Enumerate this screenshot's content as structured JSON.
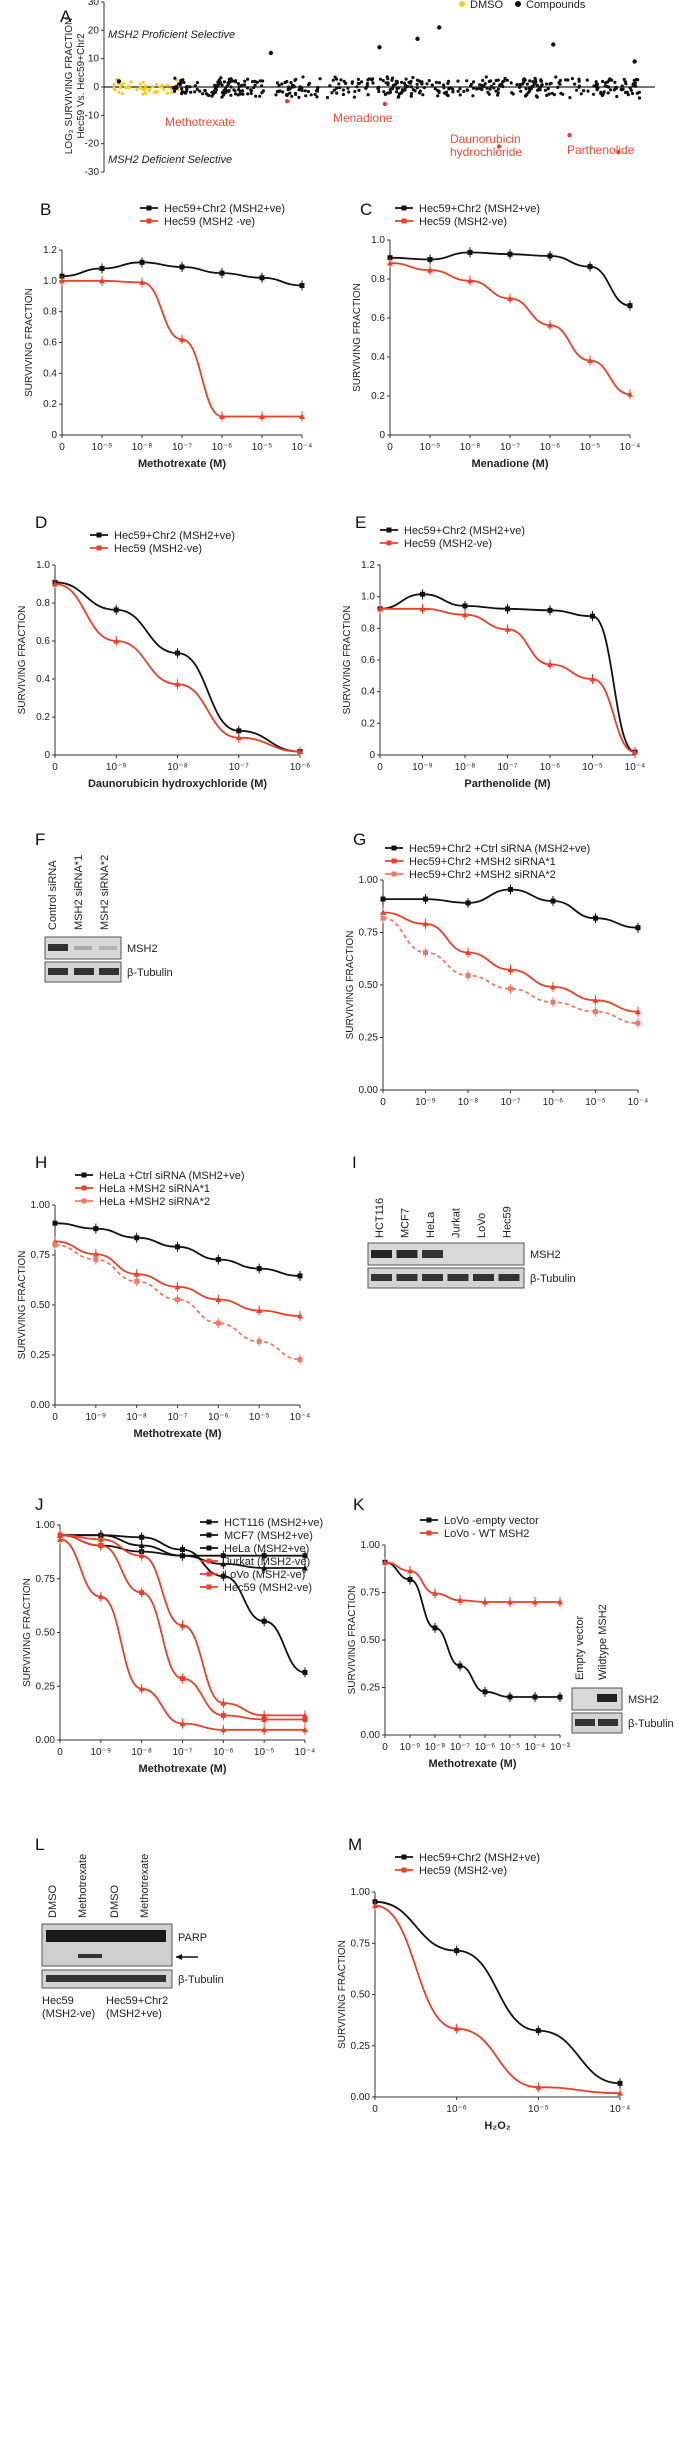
{
  "figure": {
    "panels": {
      "A": {
        "label": "A",
        "legend": [
          {
            "name": "DMSO",
            "color": "#f2d01f"
          },
          {
            "name": "Compounds",
            "color": "#111111"
          }
        ],
        "ylabel_line1": "LOG₂ SURVIVING FRACTION",
        "ylabel_line2": "Hec59 Vs. Hec59+Chr2",
        "yticks": [
          "30",
          "20",
          "10",
          "0",
          "-10",
          "-20",
          "-30"
        ],
        "top_note": "MSH2 Proficient Selective",
        "bottom_note": "MSH2 Deficient Selective",
        "hits": [
          "Methotrexate",
          "Menadione",
          "Daunorubicin",
          "hydrochloride",
          "Parthenolide"
        ]
      },
      "B": {
        "label": "B",
        "xlabel": "Methotrexate (M)",
        "ylabel": "SURVIVING FRACTION",
        "series": [
          "Hec59+Chr2 (MSH2+ve)",
          "Hec59 (MSH2 -ve)"
        ],
        "yticks": [
          "1.2",
          "1.0",
          "0.8",
          "0.6",
          "0.4",
          "0.2",
          "0"
        ],
        "xticks": [
          "0",
          "10⁻⁹",
          "10⁻⁸",
          "10⁻⁷",
          "10⁻⁶",
          "10⁻⁵",
          "10⁻⁴"
        ]
      },
      "C": {
        "label": "C",
        "xlabel": "Menadione (M)",
        "ylabel": "SURVIVING FRACTION",
        "series": [
          "Hec59+Chr2 (MSH2+ve)",
          "Hec59 (MSH2-ve)"
        ],
        "yticks": [
          "1.0",
          "0.8",
          "0.6",
          "0.4",
          "0.2",
          "0"
        ],
        "xticks": [
          "0",
          "10⁻⁹",
          "10⁻⁸",
          "10⁻⁷",
          "10⁻⁶",
          "10⁻⁵",
          "10⁻⁴"
        ]
      },
      "D": {
        "label": "D",
        "xlabel": "Daunorubicin hydroxychloride (M)",
        "ylabel": "SURVIVING FRACTION",
        "series": [
          "Hec59+Chr2 (MSH2+ve)",
          "Hec59 (MSH2-ve)"
        ],
        "yticks": [
          "1.0",
          "0.8",
          "0.6",
          "0.4",
          "0.2",
          "0"
        ],
        "xticks": [
          "0",
          "10⁻⁹",
          "10⁻⁸",
          "10⁻⁷",
          "10⁻⁶"
        ]
      },
      "E": {
        "label": "E",
        "xlabel": "Parthenolide (M)",
        "ylabel": "SURVIVING FRACTION",
        "series": [
          "Hec59+Chr2 (MSH2+ve)",
          "Hec59 (MSH2-ve)"
        ],
        "yticks": [
          "1.2",
          "1.0",
          "0.8",
          "0.6",
          "0.4",
          "0.2",
          "0"
        ],
        "xticks": [
          "0",
          "10⁻⁹",
          "10⁻⁸",
          "10⁻⁷",
          "10⁻⁶",
          "10⁻⁵",
          "10⁻⁴"
        ]
      },
      "F": {
        "label": "F",
        "lanes": [
          "Control siRNA",
          "MSH2 siRNA*1",
          "MSH2 siRNA*2"
        ],
        "bands": [
          "MSH2",
          "β-Tubulin"
        ]
      },
      "G": {
        "label": "G",
        "ylabel": "SURVIVING FRACTION",
        "series": [
          "Hec59+Chr2 +Ctrl siRNA (MSH2+ve)",
          "Hec59+Chr2 +MSH2 siRNA*1",
          "Hec59+Chr2 +MSH2 siRNA*2"
        ],
        "yticks": [
          "1.00",
          "0.75",
          "0.50",
          "0.25",
          "0.00"
        ],
        "xticks": [
          "0",
          "10⁻⁹",
          "10⁻⁸",
          "10⁻⁷",
          "10⁻⁶",
          "10⁻⁵",
          "10⁻⁴"
        ]
      },
      "H": {
        "label": "H",
        "xlabel": "Methotrexate (M)",
        "ylabel": "SURVIVING FRACTION",
        "series": [
          "HeLa +Ctrl siRNA (MSH2+ve)",
          "HeLa +MSH2 siRNA*1",
          "HeLa +MSH2 siRNA*2"
        ],
        "yticks": [
          "1.00",
          "0.75",
          "0.50",
          "0.25",
          "0.00"
        ],
        "xticks": [
          "0",
          "10⁻⁹",
          "10⁻⁸",
          "10⁻⁷",
          "10⁻⁶",
          "10⁻⁵",
          "10⁻⁴"
        ]
      },
      "I": {
        "label": "I",
        "lanes": [
          "HCT116",
          "MCF7",
          "HeLa",
          "Jurkat",
          "LoVo",
          "Hec59"
        ],
        "bands": [
          "MSH2",
          "β-Tubulin"
        ]
      },
      "J": {
        "label": "J",
        "xlabel": "Methotrexate (M)",
        "ylabel": "SURVIVING FRACTION",
        "series": [
          "HCT116 (MSH2+ve)",
          "MCF7 (MSH2+ve)",
          "HeLa (MSH2+ve)",
          "Jurkat (MSH2-ve)",
          "LoVo (MSH2-ve)",
          "Hec59 (MSH2-ve)"
        ],
        "yticks": [
          "1.00",
          "0.75",
          "0.50",
          "0.25",
          "0.00"
        ],
        "xticks": [
          "0",
          "10⁻⁹",
          "10⁻⁸",
          "10⁻⁷",
          "10⁻⁶",
          "10⁻⁵",
          "10⁻⁴"
        ]
      },
      "K": {
        "label": "K",
        "xlabel": "Methotrexate (M)",
        "ylabel": "SURVIVING FRACTION",
        "series": [
          "LoVo -empty vector",
          "LoVo - WT MSH2"
        ],
        "yticks": [
          "1.00",
          "0.75",
          "0.50",
          "0.25",
          "0.00"
        ],
        "xticks": [
          "0",
          "10⁻⁹",
          "10⁻⁸",
          "10⁻⁷",
          "10⁻⁶",
          "10⁻⁵",
          "10⁻⁴",
          "10⁻³"
        ],
        "lanes": [
          "Empty vector",
          "Wildtype MSH2"
        ],
        "bands": [
          "MSH2",
          "β-Tubulin"
        ]
      },
      "L": {
        "label": "L",
        "lanes": [
          "DMSO",
          "Methotrexate",
          "DMSO",
          "Methotrexate"
        ],
        "bands": [
          "PARP",
          "β-Tubulin"
        ],
        "groups": [
          {
            "line1": "Hec59",
            "line2": "(MSH2-ve)"
          },
          {
            "line1": "Hec59+Chr2",
            "line2": "(MSH2+ve)"
          }
        ]
      },
      "M": {
        "label": "M",
        "xlabel": "H₂O₂",
        "ylabel": "SURVIVING FRACTION",
        "series": [
          "Hec59+Chr2 (MSH2+ve)",
          "Hec59 (MSH2-ve)"
        ],
        "yticks": [
          "1.00",
          "0.75",
          "0.50",
          "0.25",
          "0.00"
        ],
        "xticks": [
          "0",
          "10⁻⁶",
          "10⁻⁵",
          "10⁻⁴"
        ]
      }
    }
  },
  "chart_data": [
    {
      "type": "scatter",
      "panel": "A",
      "ylim": [
        -30,
        30
      ],
      "series": [
        {
          "name": "DMSO",
          "color": "#f2d01f"
        },
        {
          "name": "Compounds",
          "color": "#111111"
        }
      ],
      "points": [
        [
          0.02,
          2
        ],
        [
          0.33,
          -5
        ],
        [
          0.51,
          -6
        ],
        [
          0.72,
          -21
        ],
        [
          0.94,
          -23
        ],
        [
          0.85,
          -17
        ],
        [
          0.61,
          21
        ],
        [
          0.57,
          17
        ],
        [
          0.82,
          15
        ],
        [
          0.3,
          12
        ],
        [
          0.5,
          14
        ],
        [
          0.97,
          9
        ]
      ]
    },
    {
      "type": "line",
      "panel": "B",
      "ylim": [
        0,
        1.2
      ],
      "x": [
        "0",
        "10⁻⁹",
        "10⁻⁸",
        "10⁻⁷",
        "10⁻⁶",
        "10⁻⁵",
        "10⁻⁴"
      ],
      "series": [
        {
          "name": "Hec59+Chr2 (MSH2+ve)",
          "color": "#111111",
          "values": [
            1.03,
            1.08,
            1.12,
            1.09,
            1.05,
            1.02,
            0.97
          ]
        },
        {
          "name": "Hec59 (MSH2 -ve)",
          "color": "#e8402a",
          "values": [
            1.0,
            1.0,
            0.99,
            0.62,
            0.12,
            0.12,
            0.12
          ]
        }
      ]
    },
    {
      "type": "line",
      "panel": "C",
      "ylim": [
        0,
        1.1
      ],
      "x": [
        "0",
        "10⁻⁹",
        "10⁻⁸",
        "10⁻⁷",
        "10⁻⁶",
        "10⁻⁵",
        "10⁻⁴"
      ],
      "series": [
        {
          "name": "Hec59+Chr2 (MSH2+ve)",
          "color": "#111111",
          "values": [
            1.0,
            0.99,
            1.03,
            1.02,
            1.01,
            0.95,
            0.73
          ]
        },
        {
          "name": "Hec59 (MSH2-ve)",
          "color": "#e8402a",
          "values": [
            0.97,
            0.93,
            0.87,
            0.77,
            0.62,
            0.42,
            0.23
          ]
        }
      ]
    },
    {
      "type": "line",
      "panel": "D",
      "ylim": [
        0,
        1.1
      ],
      "x": [
        "0",
        "10⁻⁹",
        "10⁻⁸",
        "10⁻⁷",
        "10⁻⁶"
      ],
      "series": [
        {
          "name": "Hec59+Chr2 (MSH2+ve)",
          "color": "#111111",
          "values": [
            1.0,
            0.84,
            0.59,
            0.14,
            0.02
          ]
        },
        {
          "name": "Hec59 (MSH2-ve)",
          "color": "#e8402a",
          "values": [
            0.99,
            0.66,
            0.41,
            0.1,
            0.02
          ]
        }
      ]
    },
    {
      "type": "line",
      "panel": "E",
      "ylim": [
        0,
        1.3
      ],
      "x": [
        "0",
        "10⁻⁹",
        "10⁻⁸",
        "10⁻⁷",
        "10⁻⁶",
        "10⁻⁵",
        "10⁻⁴"
      ],
      "series": [
        {
          "name": "Hec59+Chr2 (MSH2+ve)",
          "color": "#111111",
          "values": [
            1.0,
            1.1,
            1.02,
            1.0,
            0.99,
            0.95,
            0.02
          ]
        },
        {
          "name": "Hec59 (MSH2-ve)",
          "color": "#e8402a",
          "values": [
            1.0,
            1.0,
            0.96,
            0.86,
            0.62,
            0.52,
            0.02
          ]
        }
      ]
    },
    {
      "type": "line",
      "panel": "G",
      "ylim": [
        0,
        1.1
      ],
      "x": [
        "0",
        "10⁻⁹",
        "10⁻⁸",
        "10⁻⁷",
        "10⁻⁶",
        "10⁻⁵",
        "10⁻⁴"
      ],
      "series": [
        {
          "name": "Hec59+Chr2 +Ctrl siRNA (MSH2+ve)",
          "color": "#111111",
          "values": [
            1.0,
            1.0,
            0.98,
            1.05,
            0.99,
            0.9,
            0.85
          ]
        },
        {
          "name": "Hec59+Chr2 +MSH2 siRNA*1",
          "color": "#e8402a",
          "values": [
            0.93,
            0.87,
            0.72,
            0.63,
            0.54,
            0.47,
            0.41
          ]
        },
        {
          "name": "Hec59+Chr2 +MSH2 siRNA*2",
          "color": "#f07a6a",
          "values": [
            0.9,
            0.72,
            0.6,
            0.53,
            0.46,
            0.41,
            0.35
          ]
        }
      ]
    },
    {
      "type": "line",
      "panel": "H",
      "ylim": [
        0,
        1.1
      ],
      "x": [
        "0",
        "10⁻⁹",
        "10⁻⁸",
        "10⁻⁷",
        "10⁻⁶",
        "10⁻⁵",
        "10⁻⁴"
      ],
      "series": [
        {
          "name": "HeLa +Ctrl siRNA (MSH2+ve)",
          "color": "#111111",
          "values": [
            1.0,
            0.97,
            0.92,
            0.87,
            0.8,
            0.75,
            0.71
          ]
        },
        {
          "name": "HeLa +MSH2 siRNA*1",
          "color": "#e8402a",
          "values": [
            0.9,
            0.83,
            0.72,
            0.65,
            0.58,
            0.52,
            0.49
          ]
        },
        {
          "name": "HeLa +MSH2 siRNA*2",
          "color": "#f07a6a",
          "values": [
            0.88,
            0.8,
            0.68,
            0.58,
            0.45,
            0.35,
            0.25
          ]
        }
      ]
    },
    {
      "type": "line",
      "panel": "J",
      "ylim": [
        0,
        1.05
      ],
      "x": [
        "0",
        "10⁻⁹",
        "10⁻⁸",
        "10⁻⁷",
        "10⁻⁶",
        "10⁻⁵",
        "10⁻⁴"
      ],
      "series": [
        {
          "name": "HCT116 (MSH2+ve)",
          "color": "#111111",
          "values": [
            1.0,
            0.95,
            0.92,
            0.9,
            0.9,
            0.9,
            0.9
          ]
        },
        {
          "name": "MCF7 (MSH2+ve)",
          "color": "#111111",
          "values": [
            1.0,
            1.0,
            0.95,
            0.9,
            0.86,
            0.84,
            0.84
          ]
        },
        {
          "name": "HeLa (MSH2+ve)",
          "color": "#111111",
          "values": [
            1.0,
            1.0,
            0.99,
            0.93,
            0.8,
            0.58,
            0.33
          ]
        },
        {
          "name": "Jurkat (MSH2-ve)",
          "color": "#e8402a",
          "values": [
            1.0,
            0.98,
            0.9,
            0.56,
            0.18,
            0.12,
            0.12
          ]
        },
        {
          "name": "LoVo (MSH2-ve)",
          "color": "#e8402a",
          "values": [
            1.0,
            0.95,
            0.72,
            0.3,
            0.12,
            0.1,
            0.1
          ]
        },
        {
          "name": "Hec59 (MSH2-ve)",
          "color": "#e8402a",
          "values": [
            0.98,
            0.7,
            0.25,
            0.08,
            0.05,
            0.05,
            0.05
          ]
        }
      ]
    },
    {
      "type": "line",
      "panel": "K",
      "ylim": [
        0,
        1.1
      ],
      "x": [
        "0",
        "10⁻⁹",
        "10⁻⁸",
        "10⁻⁷",
        "10⁻⁶",
        "10⁻⁵",
        "10⁻⁴",
        "10⁻³"
      ],
      "series": [
        {
          "name": "LoVo -empty vector",
          "color": "#111111",
          "values": [
            1.0,
            0.9,
            0.62,
            0.4,
            0.25,
            0.22,
            0.22,
            0.22
          ]
        },
        {
          "name": "LoVo - WT MSH2",
          "color": "#e8402a",
          "values": [
            1.0,
            0.95,
            0.82,
            0.78,
            0.77,
            0.77,
            0.77,
            0.77
          ]
        }
      ]
    },
    {
      "type": "line",
      "panel": "M",
      "ylim": [
        0,
        1.05
      ],
      "x": [
        "0",
        "10⁻⁶",
        "10⁻⁵",
        "10⁻⁴"
      ],
      "series": [
        {
          "name": "Hec59+Chr2 (MSH2+ve)",
          "color": "#111111",
          "values": [
            1.0,
            0.75,
            0.34,
            0.07
          ]
        },
        {
          "name": "Hec59 (MSH2-ve)",
          "color": "#e8402a",
          "values": [
            0.98,
            0.35,
            0.05,
            0.02
          ]
        }
      ]
    }
  ]
}
